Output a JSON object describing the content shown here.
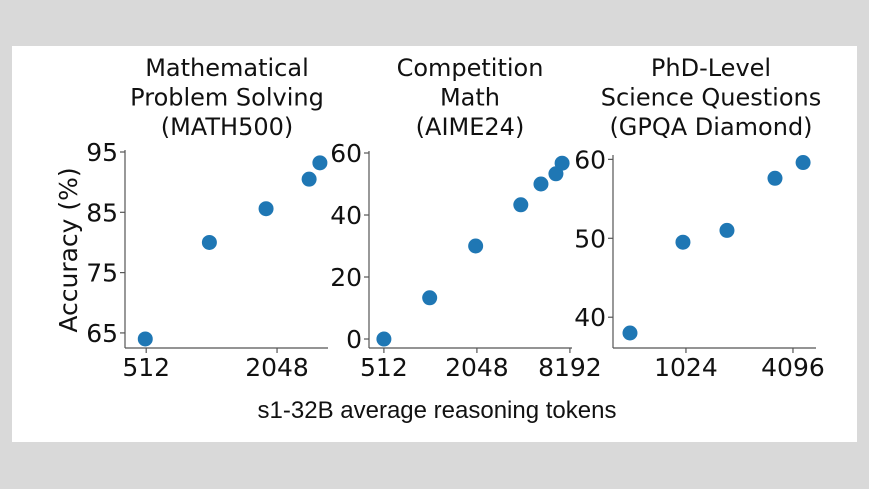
{
  "chart_data": [
    {
      "type": "scatter",
      "title": [
        "Mathematical",
        "Problem Solving",
        "(MATH500)"
      ],
      "ylabel": "Accuracy (%)",
      "x_scale": "log2",
      "xlim": [
        409,
        3514
      ],
      "ylim": [
        62.5,
        95
      ],
      "xticks": [
        512,
        2048
      ],
      "yticks": [
        65,
        75,
        85,
        95
      ],
      "x": [
        507,
        1000,
        1823,
        2877,
        3225
      ],
      "y": [
        64.0,
        80.0,
        85.6,
        90.5,
        93.2
      ]
    },
    {
      "type": "scatter",
      "title": [
        "Competition",
        "Math",
        "(AIME24)"
      ],
      "x_scale": "log2",
      "xlim": [
        410,
        8450
      ],
      "ylim": [
        -2.9,
        60
      ],
      "xticks": [
        512,
        2048,
        8192
      ],
      "yticks": [
        0,
        20,
        40,
        60
      ],
      "x": [
        512,
        1013,
        2010,
        3940,
        5320,
        6650,
        7290
      ],
      "y": [
        0.0,
        13.3,
        30.0,
        43.3,
        50.0,
        53.3,
        56.7
      ]
    },
    {
      "type": "scatter",
      "title": [
        "PhD-Level",
        "Science Questions",
        "(GPQA Diamond)"
      ],
      "x_scale": "log2",
      "xlim": [
        398,
        5520
      ],
      "ylim": [
        36.1,
        60.3
      ],
      "xticks": [
        1024,
        4096
      ],
      "yticks": [
        40,
        50,
        60
      ],
      "x": [
        496,
        985,
        1742,
        3245,
        4670
      ],
      "y": [
        38.0,
        49.5,
        51.0,
        57.6,
        59.6
      ]
    }
  ],
  "shared_xlabel": "s1-32B average reasoning tokens",
  "colors": {
    "marker": "#1f77b4",
    "background": "#d9d9d9",
    "figure": "#ffffff"
  },
  "grid": false
}
